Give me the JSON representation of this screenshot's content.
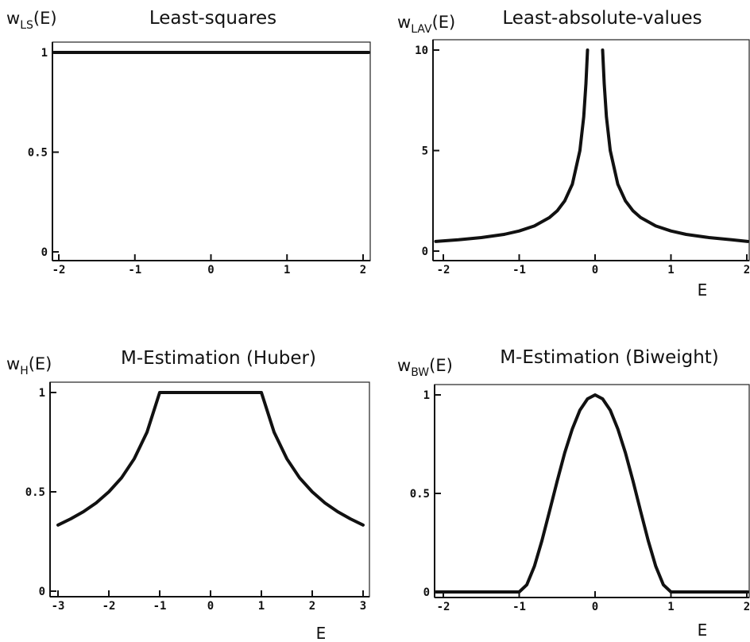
{
  "chart_data": [
    {
      "type": "line",
      "title": "Least-squares",
      "ylabel": {
        "main": "w",
        "sub": "LS",
        "suffix": "(E)"
      },
      "xlabel": "",
      "xlim": [
        -2.1,
        2.1
      ],
      "ylim": [
        0,
        1
      ],
      "xticks": [
        "-2",
        "-1",
        "0",
        "1",
        "2"
      ],
      "yticks": [
        "0",
        "0.5",
        "1"
      ],
      "series": [
        {
          "x": [
            -2.1,
            2.1
          ],
          "values": [
            1,
            1
          ]
        }
      ]
    },
    {
      "type": "line",
      "title": "Least-absolute-values",
      "ylabel": {
        "main": "w",
        "sub": "LAV",
        "suffix": "(E)"
      },
      "xlabel": "E",
      "xlim": [
        -2.1,
        2.1
      ],
      "ylim": [
        0,
        10
      ],
      "xticks": [
        "-2",
        "-1",
        "0",
        "1",
        "2"
      ],
      "yticks": [
        "0",
        "5",
        "10"
      ],
      "series": [
        {
          "x": [
            -2.1,
            -1.8,
            -1.5,
            -1.2,
            -1,
            -0.8,
            -0.6,
            -0.5,
            -0.4,
            -0.3,
            -0.2,
            -0.15,
            -0.12,
            -0.1
          ],
          "values": [
            0.48,
            0.56,
            0.67,
            0.83,
            1,
            1.25,
            1.67,
            2,
            2.5,
            3.33,
            5,
            6.67,
            8.33,
            10
          ]
        },
        {
          "x": [
            0.1,
            0.12,
            0.15,
            0.2,
            0.3,
            0.4,
            0.5,
            0.6,
            0.8,
            1,
            1.2,
            1.5,
            1.8,
            2.1
          ],
          "values": [
            10,
            8.33,
            6.67,
            5,
            3.33,
            2.5,
            2,
            1.67,
            1.25,
            1,
            0.83,
            0.67,
            0.56,
            0.48
          ]
        }
      ]
    },
    {
      "type": "line",
      "title": "M-Estimation (Huber)",
      "ylabel": {
        "main": "w",
        "sub": "H",
        "suffix": "(E)"
      },
      "xlabel": "E",
      "xlim": [
        -3.15,
        3.15
      ],
      "ylim": [
        0,
        1
      ],
      "xticks": [
        "-3",
        "-2",
        "-1",
        "0",
        "1",
        "2",
        "3"
      ],
      "yticks": [
        "0",
        "0.5",
        "1"
      ],
      "series": [
        {
          "x": [
            -3,
            -2.75,
            -2.5,
            -2.25,
            -2,
            -1.75,
            -1.5,
            -1.25,
            -1,
            1,
            1.25,
            1.5,
            1.75,
            2,
            2.25,
            2.5,
            2.75,
            3
          ],
          "values": [
            0.333,
            0.364,
            0.4,
            0.444,
            0.5,
            0.571,
            0.667,
            0.8,
            1,
            1,
            0.8,
            0.667,
            0.571,
            0.5,
            0.444,
            0.4,
            0.364,
            0.333
          ]
        }
      ]
    },
    {
      "type": "line",
      "title": "M-Estimation (Biweight)",
      "ylabel": {
        "main": "w",
        "sub": "BW",
        "suffix": "(E)"
      },
      "xlabel": "E",
      "xlim": [
        -2.1,
        2.1
      ],
      "ylim": [
        0,
        1
      ],
      "xticks": [
        "-2",
        "-1",
        "0",
        "1",
        "2"
      ],
      "yticks": [
        "0",
        "0.5",
        "1"
      ],
      "series": [
        {
          "x": [
            -2.1,
            -1,
            -0.9,
            -0.8,
            -0.7,
            -0.6,
            -0.5,
            -0.4,
            -0.3,
            -0.2,
            -0.1,
            0,
            0.1,
            0.2,
            0.3,
            0.4,
            0.5,
            0.6,
            0.7,
            0.8,
            0.9,
            1,
            2.1
          ],
          "values": [
            0,
            0,
            0.036,
            0.13,
            0.26,
            0.41,
            0.5625,
            0.706,
            0.828,
            0.922,
            0.98,
            1,
            0.98,
            0.922,
            0.828,
            0.706,
            0.5625,
            0.41,
            0.26,
            0.13,
            0.036,
            0,
            0
          ]
        }
      ]
    }
  ]
}
